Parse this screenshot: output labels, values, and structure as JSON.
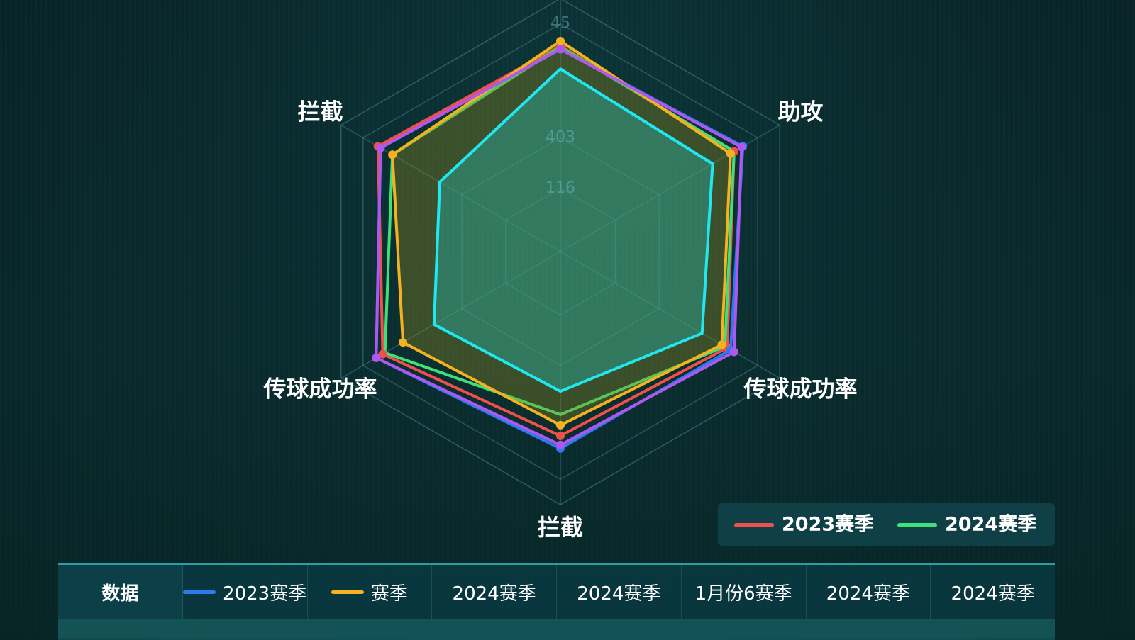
{
  "chart_data": {
    "type": "radar",
    "categories": [
      null,
      "助攻",
      "传球成功率",
      "拦截",
      "传球成功率",
      "拦截"
    ],
    "rlim": [
      0,
      50
    ],
    "rticks": [
      {
        "value": 12.5,
        "label": "116"
      },
      {
        "value": 22.5,
        "label": "403"
      },
      45
    ],
    "grid": true,
    "legend": "bottom-right",
    "series": [
      {
        "name": "2023赛季",
        "color": "#f0504a",
        "values": [
          40.6,
          39.6,
          38,
          36.4,
          40.5,
          41.6
        ],
        "markers": true
      },
      {
        "name": "2024赛季",
        "color": "#3ee07a",
        "values": [
          40.5,
          39.6,
          37.5,
          32.2,
          40,
          38.3
        ],
        "markers": false
      },
      {
        "color": "#2a7cf0",
        "values": [
          40,
          41.6,
          38.8,
          38.9,
          42,
          41
        ],
        "markers": true
      },
      {
        "color": "#f5b21e",
        "values": [
          41.6,
          38.8,
          36.8,
          34.3,
          35.9,
          38.3
        ],
        "markers": true,
        "fill": "rgba(150,140,30,0.35)"
      },
      {
        "color": "#b057f0",
        "values": [
          40,
          41.3,
          39.6,
          38.2,
          42,
          41
        ],
        "markers": true
      },
      {
        "color": "#1fe8f0",
        "values": [
          36.1,
          34.7,
          32.3,
          27.6,
          28.8,
          27.5
        ],
        "markers": false,
        "fill": "rgba(40,170,160,0.45)"
      }
    ]
  },
  "table": {
    "header": [
      "数据",
      "2023赛季",
      "赛季",
      "2024赛季",
      "2024赛季",
      "1月份6赛季",
      "2024赛季",
      "2024赛季"
    ]
  }
}
